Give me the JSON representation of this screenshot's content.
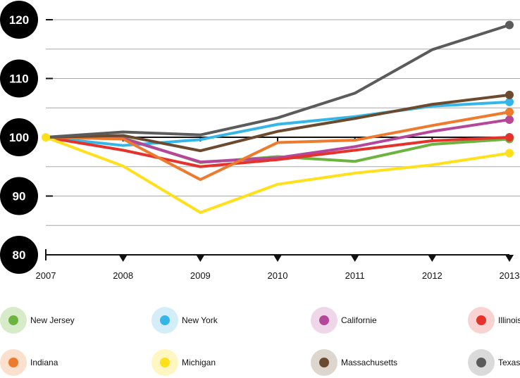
{
  "chart_data": {
    "type": "line",
    "title": "",
    "xlabel": "",
    "ylabel": "",
    "x": [
      "2007",
      "2008",
      "2009",
      "2010",
      "2011",
      "2012",
      "2013"
    ],
    "y_ticks": [
      "120",
      "110",
      "100",
      "90",
      "80"
    ],
    "ylim": [
      80,
      120
    ],
    "grid": true,
    "legend_position": "bottom",
    "series": [
      {
        "name": "New Jersey",
        "color": "#6cb33f",
        "values": [
          100,
          99.9,
          95.7,
          96.7,
          95.9,
          98.8,
          99.7
        ]
      },
      {
        "name": "New York",
        "color": "#35b6e8",
        "values": [
          100,
          98.6,
          99.6,
          102.2,
          103.5,
          105.3,
          106
        ]
      },
      {
        "name": "Californie",
        "color": "#b5479b",
        "values": [
          100,
          99.8,
          95.8,
          96.5,
          98.4,
          101,
          103
        ]
      },
      {
        "name": "Illinois",
        "color": "#e3332c",
        "values": [
          100,
          97.8,
          95,
          96.2,
          97.8,
          99.4,
          100
        ]
      },
      {
        "name": "Indiana",
        "color": "#ee7a2d",
        "values": [
          100,
          99.7,
          92.8,
          99.1,
          99.5,
          102,
          104.3
        ]
      },
      {
        "name": "Michigan",
        "color": "#ffe01b",
        "values": [
          100,
          95.1,
          87.2,
          92,
          93.9,
          95.3,
          97.3
        ]
      },
      {
        "name": "Massachusetts",
        "color": "#6b4a2e",
        "values": [
          100,
          100.3,
          97.7,
          101,
          103.2,
          105.6,
          107.2
        ]
      },
      {
        "name": "Texas",
        "color": "#5b5b5b",
        "values": [
          100,
          100.9,
          100.4,
          103.3,
          107.5,
          114.9,
          119.1
        ]
      }
    ]
  },
  "legend": {
    "items": [
      {
        "name": "New Jersey",
        "color": "#6cb33f",
        "halo": "#d6ecc9"
      },
      {
        "name": "New York",
        "color": "#35b6e8",
        "halo": "#d4eef9"
      },
      {
        "name": "Californie",
        "color": "#b5479b",
        "halo": "#efd6e8"
      },
      {
        "name": "Illinois",
        "color": "#e3332c",
        "halo": "#f8d3d1"
      },
      {
        "name": "Indiana",
        "color": "#ee7a2d",
        "halo": "#fbe0cd"
      },
      {
        "name": "Michigan",
        "color": "#ffe01b",
        "halo": "#fff6c2"
      },
      {
        "name": "Massachusetts",
        "color": "#6b4a2e",
        "halo": "#ddd6cf"
      },
      {
        "name": "Texas",
        "color": "#5b5b5b",
        "halo": "#dadada"
      }
    ]
  }
}
